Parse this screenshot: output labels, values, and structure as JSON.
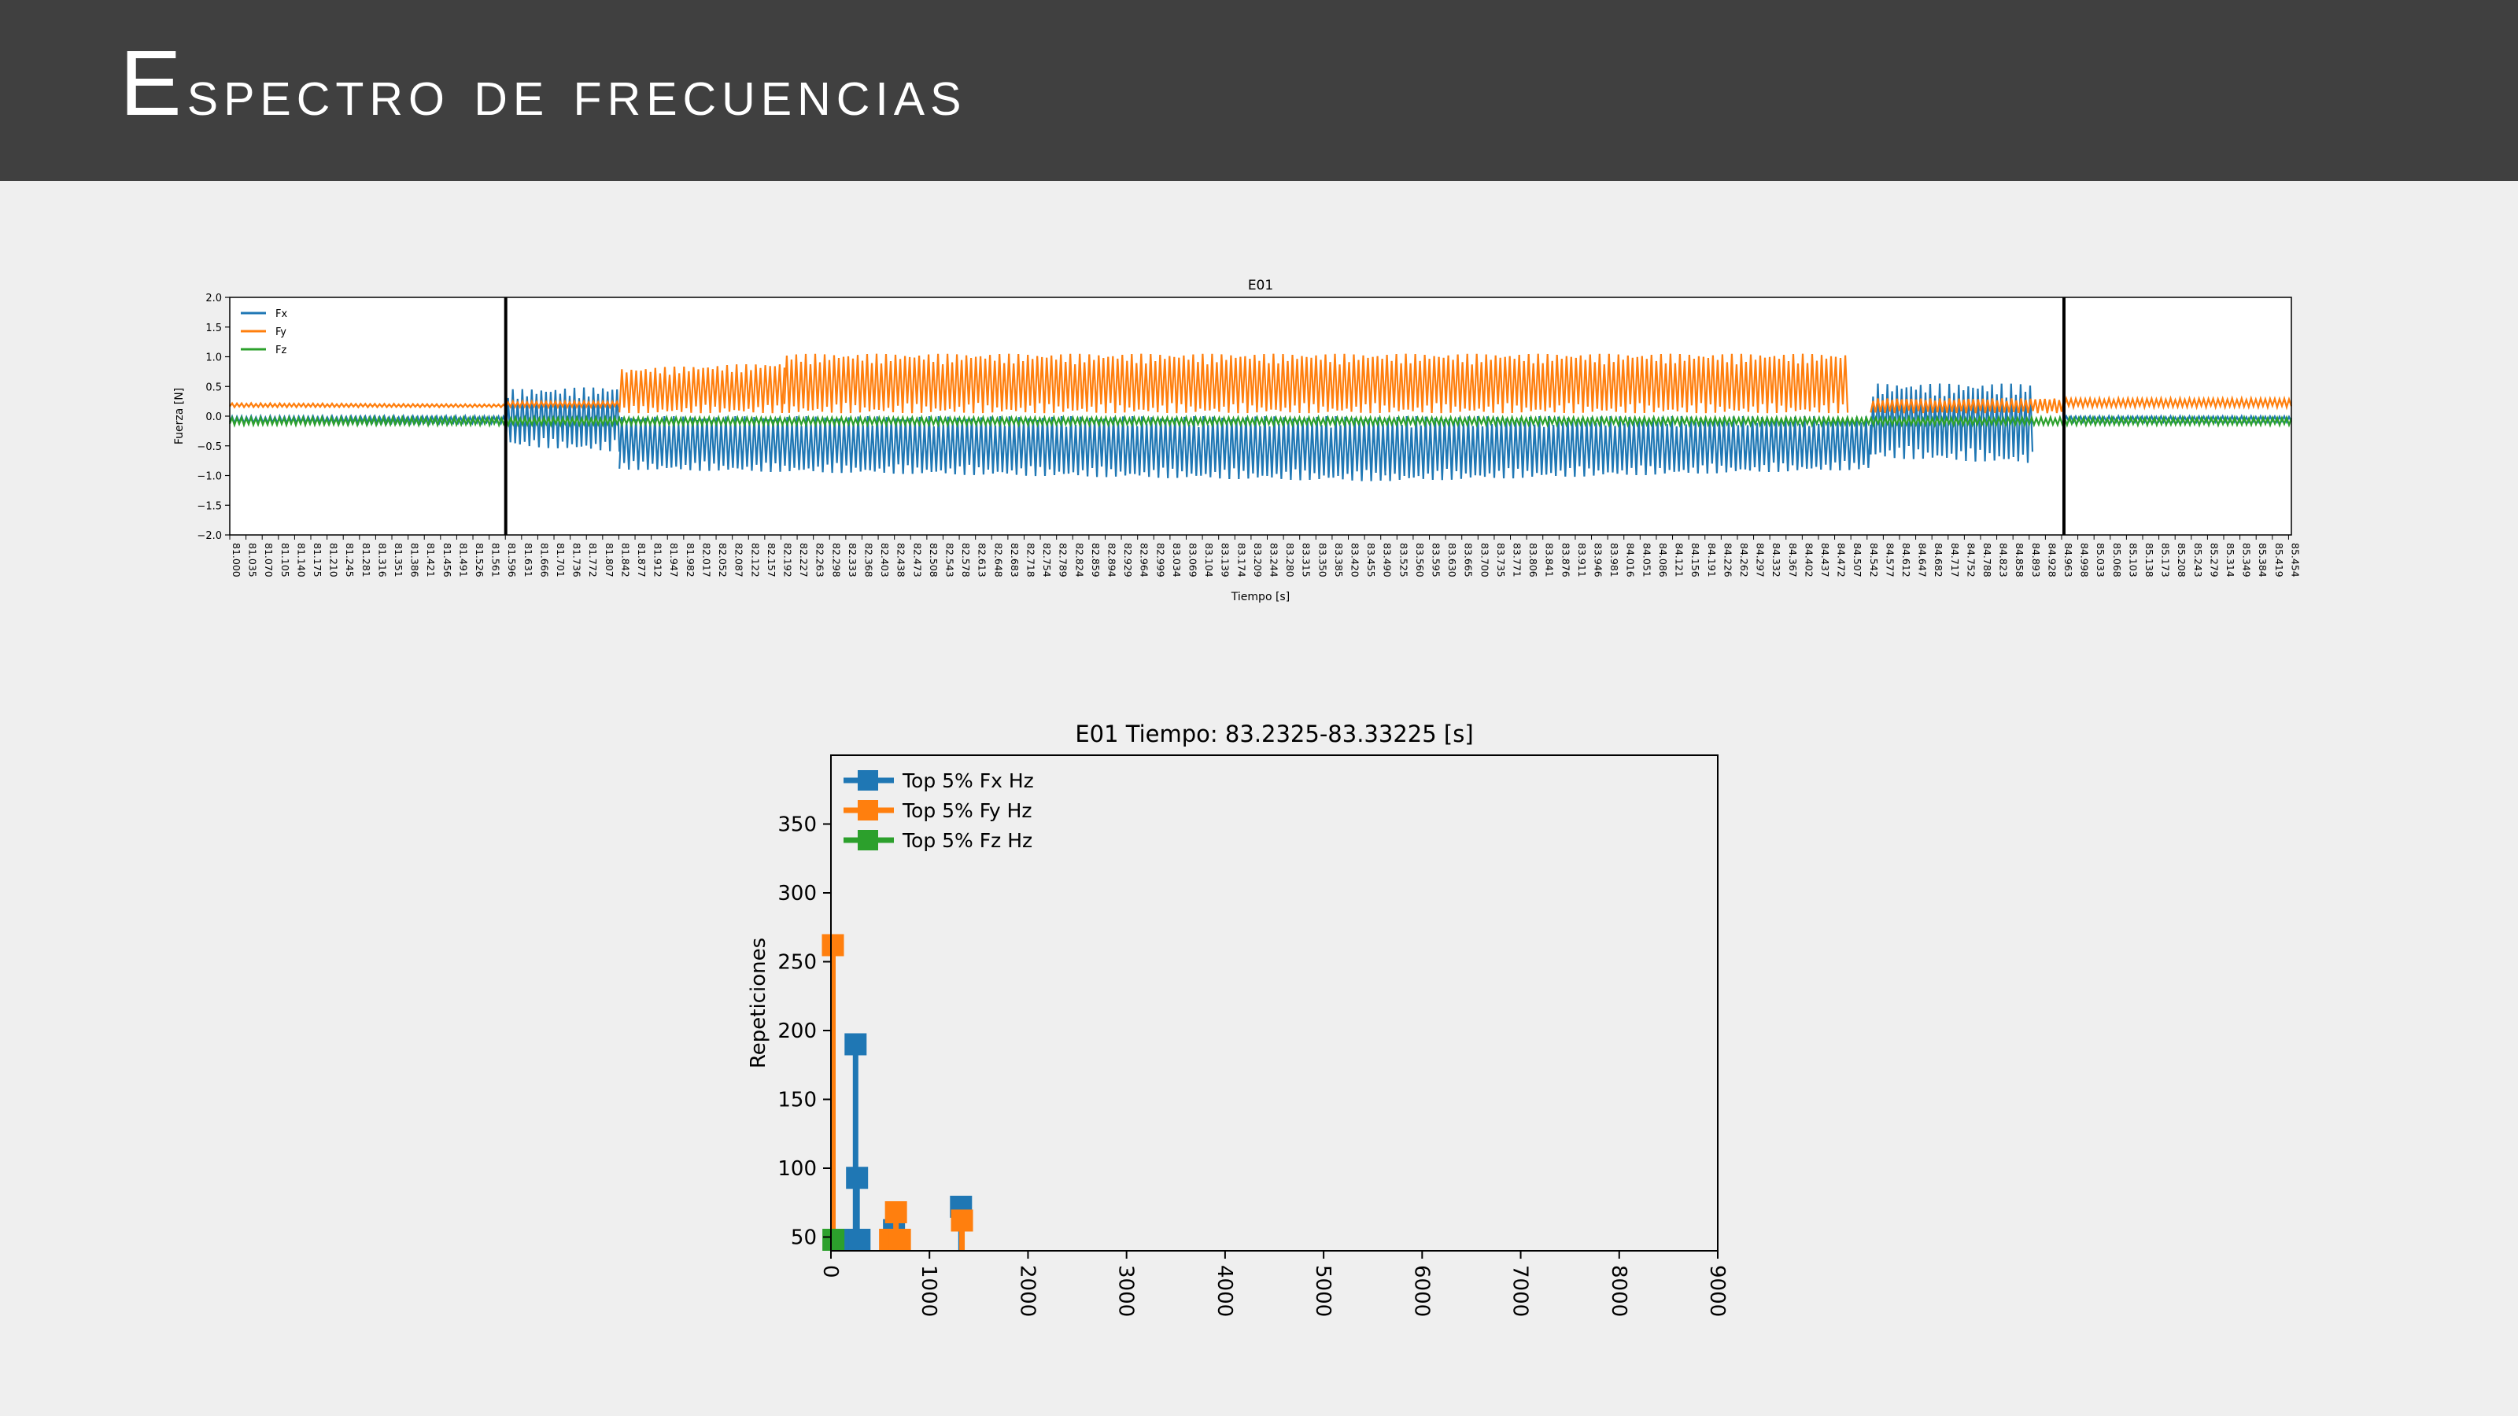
{
  "slide": {
    "title": "Espectro de frecuencias"
  },
  "chart_data": [
    {
      "type": "line",
      "title": "E01",
      "xlabel": "Tiempo [s]",
      "ylabel": "Fuerza [N]",
      "xlim": [
        81.0,
        85.46
      ],
      "ylim": [
        -2.0,
        2.0
      ],
      "yticks": [
        "2.0",
        "1.5",
        "1.0",
        "0.5",
        "0.0",
        "−1.0",
        "−1.5",
        "−2.0"
      ],
      "yticks_full": [
        "2.0",
        "1.5",
        "1.0",
        "0.5",
        "0.0",
        "−0.5",
        "−1.0",
        "−1.5",
        "−2.0"
      ],
      "xtick_start": 81.0,
      "xtick_step": 0.03507,
      "xtick_count": 128,
      "legend": [
        "Fx",
        "Fy",
        "Fz"
      ],
      "legend_position": "top-left",
      "vertical_markers": [
        81.597,
        84.968
      ],
      "series": [
        {
          "name": "Fx",
          "color": "#1f77b4",
          "segments": [
            {
              "x": [
                81.0,
                81.597
              ],
              "upper": [
                0.0,
                0.0
              ],
              "lower": [
                -0.12,
                -0.12
              ]
            },
            {
              "x": [
                81.597,
                81.843
              ],
              "upper": [
                0.45,
                0.5
              ],
              "lower": [
                -0.5,
                -0.6
              ]
            },
            {
              "x": [
                81.843,
                83.5
              ],
              "upper": [
                0.0,
                0.0
              ],
              "lower": [
                -0.9,
                -1.1
              ]
            },
            {
              "x": [
                83.5,
                84.55
              ],
              "upper": [
                0.0,
                0.0
              ],
              "lower": [
                -1.1,
                -0.9
              ]
            },
            {
              "x": [
                84.55,
                84.9
              ],
              "upper": [
                0.55,
                0.55
              ],
              "lower": [
                -0.7,
                -0.8
              ]
            },
            {
              "x": [
                84.968,
                85.46
              ],
              "upper": [
                0.0,
                0.0
              ],
              "lower": [
                -0.1,
                -0.1
              ]
            }
          ]
        },
        {
          "name": "Fy",
          "color": "#ff7f0e",
          "segments": [
            {
              "x": [
                81.0,
                81.597
              ],
              "upper": [
                0.22,
                0.2
              ],
              "lower": [
                0.15,
                0.15
              ]
            },
            {
              "x": [
                81.597,
                81.843
              ],
              "upper": [
                0.25,
                0.25
              ],
              "lower": [
                0.15,
                0.15
              ]
            },
            {
              "x": [
                81.843,
                82.2
              ],
              "upper": [
                0.8,
                0.9
              ],
              "lower": [
                0.05,
                0.05
              ]
            },
            {
              "x": [
                82.2,
                84.5
              ],
              "upper": [
                1.05,
                1.05
              ],
              "lower": [
                0.05,
                0.05
              ]
            },
            {
              "x": [
                84.55,
                84.968
              ],
              "upper": [
                0.3,
                0.3
              ],
              "lower": [
                0.05,
                0.05
              ]
            },
            {
              "x": [
                84.968,
                85.46
              ],
              "upper": [
                0.3,
                0.3
              ],
              "lower": [
                0.15,
                0.15
              ]
            }
          ]
        },
        {
          "name": "Fz",
          "color": "#2ca02c",
          "segments": [
            {
              "x": [
                81.0,
                85.46
              ],
              "upper": [
                -0.02,
                -0.02
              ],
              "lower": [
                -0.15,
                -0.15
              ]
            }
          ]
        }
      ]
    },
    {
      "type": "bar",
      "title": "E01 Tiempo: 83.2325-83.33225 [s]",
      "xlabel": "",
      "ylabel": "Repeticiones",
      "xlim": [
        0,
        9000
      ],
      "ylim": [
        40,
        400
      ],
      "xticks": [
        "0",
        "1000",
        "2000",
        "3000",
        "4000",
        "5000",
        "6000",
        "7000",
        "8000",
        "9000"
      ],
      "yticks": [
        "50",
        "100",
        "150",
        "200",
        "250",
        "300",
        "350"
      ],
      "legend": [
        "Top 5% Fx Hz",
        "Top 5% Fy Hz",
        "Top 5% Fz Hz"
      ],
      "legend_position": "top-left",
      "series": [
        {
          "name": "Top 5% Fx Hz",
          "color": "#1f77b4",
          "points": [
            [
              250,
              190
            ],
            [
              265,
              93
            ],
            [
              210,
              48
            ],
            [
              290,
              48
            ],
            [
              640,
              55
            ],
            [
              1320,
              72
            ]
          ]
        },
        {
          "name": "Top 5% Fy Hz",
          "color": "#ff7f0e",
          "points": [
            [
              20,
              262
            ],
            [
              660,
              68
            ],
            [
              600,
              48
            ],
            [
              700,
              48
            ],
            [
              1330,
              62
            ]
          ]
        },
        {
          "name": "Top 5% Fz Hz",
          "color": "#2ca02c",
          "points": [
            [
              25,
              48
            ]
          ]
        }
      ]
    }
  ]
}
